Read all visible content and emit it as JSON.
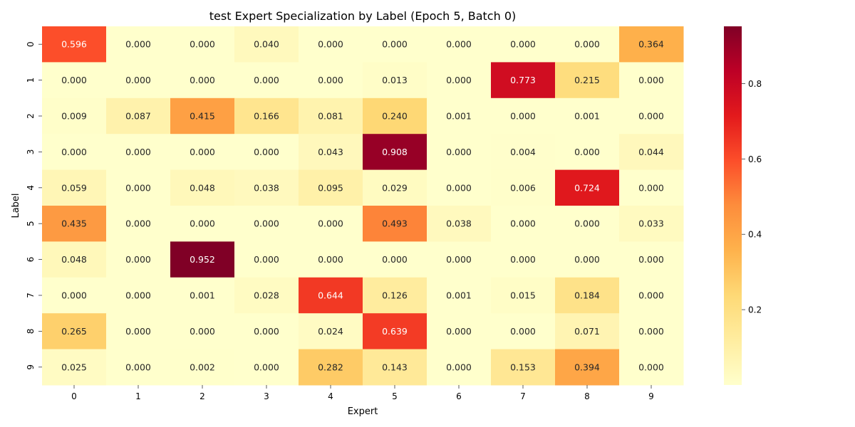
{
  "chart_data": {
    "type": "heatmap",
    "title": "test Expert Specialization by Label (Epoch 5, Batch 0)",
    "xlabel": "Expert",
    "ylabel": "Label",
    "x_categories": [
      "0",
      "1",
      "2",
      "3",
      "4",
      "5",
      "6",
      "7",
      "8",
      "9"
    ],
    "y_categories": [
      "0",
      "1",
      "2",
      "3",
      "4",
      "5",
      "6",
      "7",
      "8",
      "9"
    ],
    "values": [
      [
        0.596,
        0.0,
        0.0,
        0.04,
        0.0,
        0.0,
        0.0,
        0.0,
        0.0,
        0.364
      ],
      [
        0.0,
        0.0,
        0.0,
        0.0,
        0.0,
        0.013,
        0.0,
        0.773,
        0.215,
        0.0
      ],
      [
        0.009,
        0.087,
        0.415,
        0.166,
        0.081,
        0.24,
        0.001,
        0.0,
        0.001,
        0.0
      ],
      [
        0.0,
        0.0,
        0.0,
        0.0,
        0.043,
        0.908,
        0.0,
        0.004,
        0.0,
        0.044
      ],
      [
        0.059,
        0.0,
        0.048,
        0.038,
        0.095,
        0.029,
        0.0,
        0.006,
        0.724,
        0.0
      ],
      [
        0.435,
        0.0,
        0.0,
        0.0,
        0.0,
        0.493,
        0.038,
        0.0,
        0.0,
        0.033
      ],
      [
        0.048,
        0.0,
        0.952,
        0.0,
        0.0,
        0.0,
        0.0,
        0.0,
        0.0,
        0.0
      ],
      [
        0.0,
        0.0,
        0.001,
        0.028,
        0.644,
        0.126,
        0.001,
        0.015,
        0.184,
        0.0
      ],
      [
        0.265,
        0.0,
        0.0,
        0.0,
        0.024,
        0.639,
        0.0,
        0.0,
        0.071,
        0.0
      ],
      [
        0.025,
        0.0,
        0.002,
        0.0,
        0.282,
        0.143,
        0.0,
        0.153,
        0.394,
        0.0
      ]
    ],
    "value_format": "0.000",
    "colormap": "YlOrRd",
    "vmin": 0.0,
    "vmax": 0.952,
    "colorbar_ticks": [
      {
        "value": 0.2,
        "label": "0.2"
      },
      {
        "value": 0.4,
        "label": "0.4"
      },
      {
        "value": 0.6,
        "label": "0.6"
      },
      {
        "value": 0.8,
        "label": "0.8"
      }
    ],
    "colormap_stops": [
      "#ffffcc",
      "#ffeda0",
      "#fed976",
      "#feb24c",
      "#fd8d3c",
      "#fc4e2a",
      "#e31a1c",
      "#bd0026",
      "#800026"
    ],
    "legend": "colorbar right",
    "grid": false
  }
}
